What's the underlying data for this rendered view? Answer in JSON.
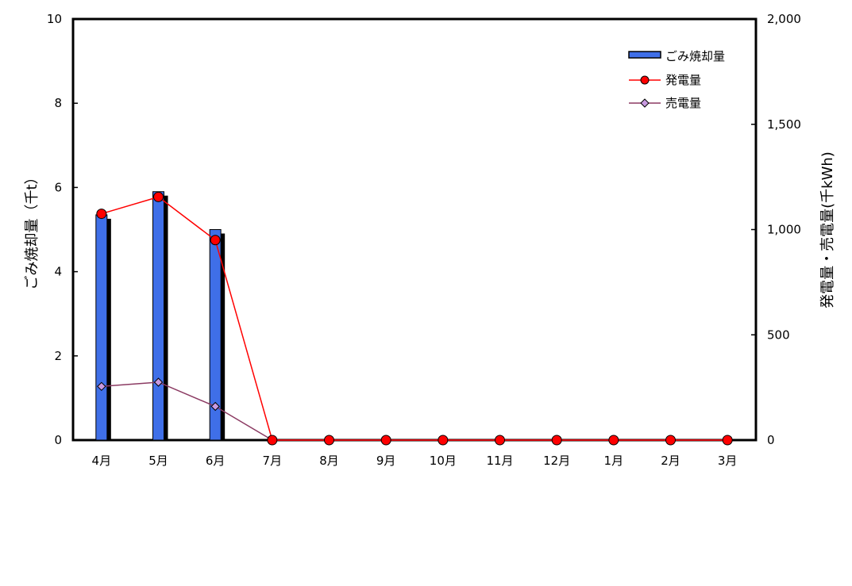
{
  "chart_data": {
    "type": "bar",
    "categories": [
      "4月",
      "5月",
      "6月",
      "7月",
      "8月",
      "9月",
      "10月",
      "11月",
      "12月",
      "1月",
      "2月",
      "3月"
    ],
    "series": [
      {
        "name": "ごみ焼却量",
        "type": "bar",
        "axis": "left",
        "color": "#3f6fe8",
        "values": [
          5.35,
          5.9,
          5.0,
          0,
          0,
          0,
          0,
          0,
          0,
          0,
          0,
          0
        ]
      },
      {
        "name": "発電量",
        "type": "line",
        "axis": "right",
        "color": "#ff0000",
        "marker": "circle",
        "values": [
          1075,
          1155,
          950,
          0,
          0,
          0,
          0,
          0,
          0,
          0,
          0,
          0
        ]
      },
      {
        "name": "売電量",
        "type": "line",
        "axis": "right",
        "color": "#8b3a62",
        "marker": "diamond",
        "values": [
          255,
          275,
          160,
          0,
          0,
          0,
          0,
          0,
          0,
          0,
          0,
          0
        ]
      }
    ],
    "ylabel_left": "ごみ焼却量（千t）",
    "ylabel_right": "発電量・売電量(千kWh)",
    "ylim_left": [
      0,
      10
    ],
    "yticks_left": [
      "0",
      "2",
      "4",
      "6",
      "8",
      "10"
    ],
    "ylim_right": [
      0,
      2000
    ],
    "yticks_right": [
      "0",
      "500",
      "1,000",
      "1,500",
      "2,000"
    ],
    "legend_position": "top-right",
    "grid": false
  }
}
